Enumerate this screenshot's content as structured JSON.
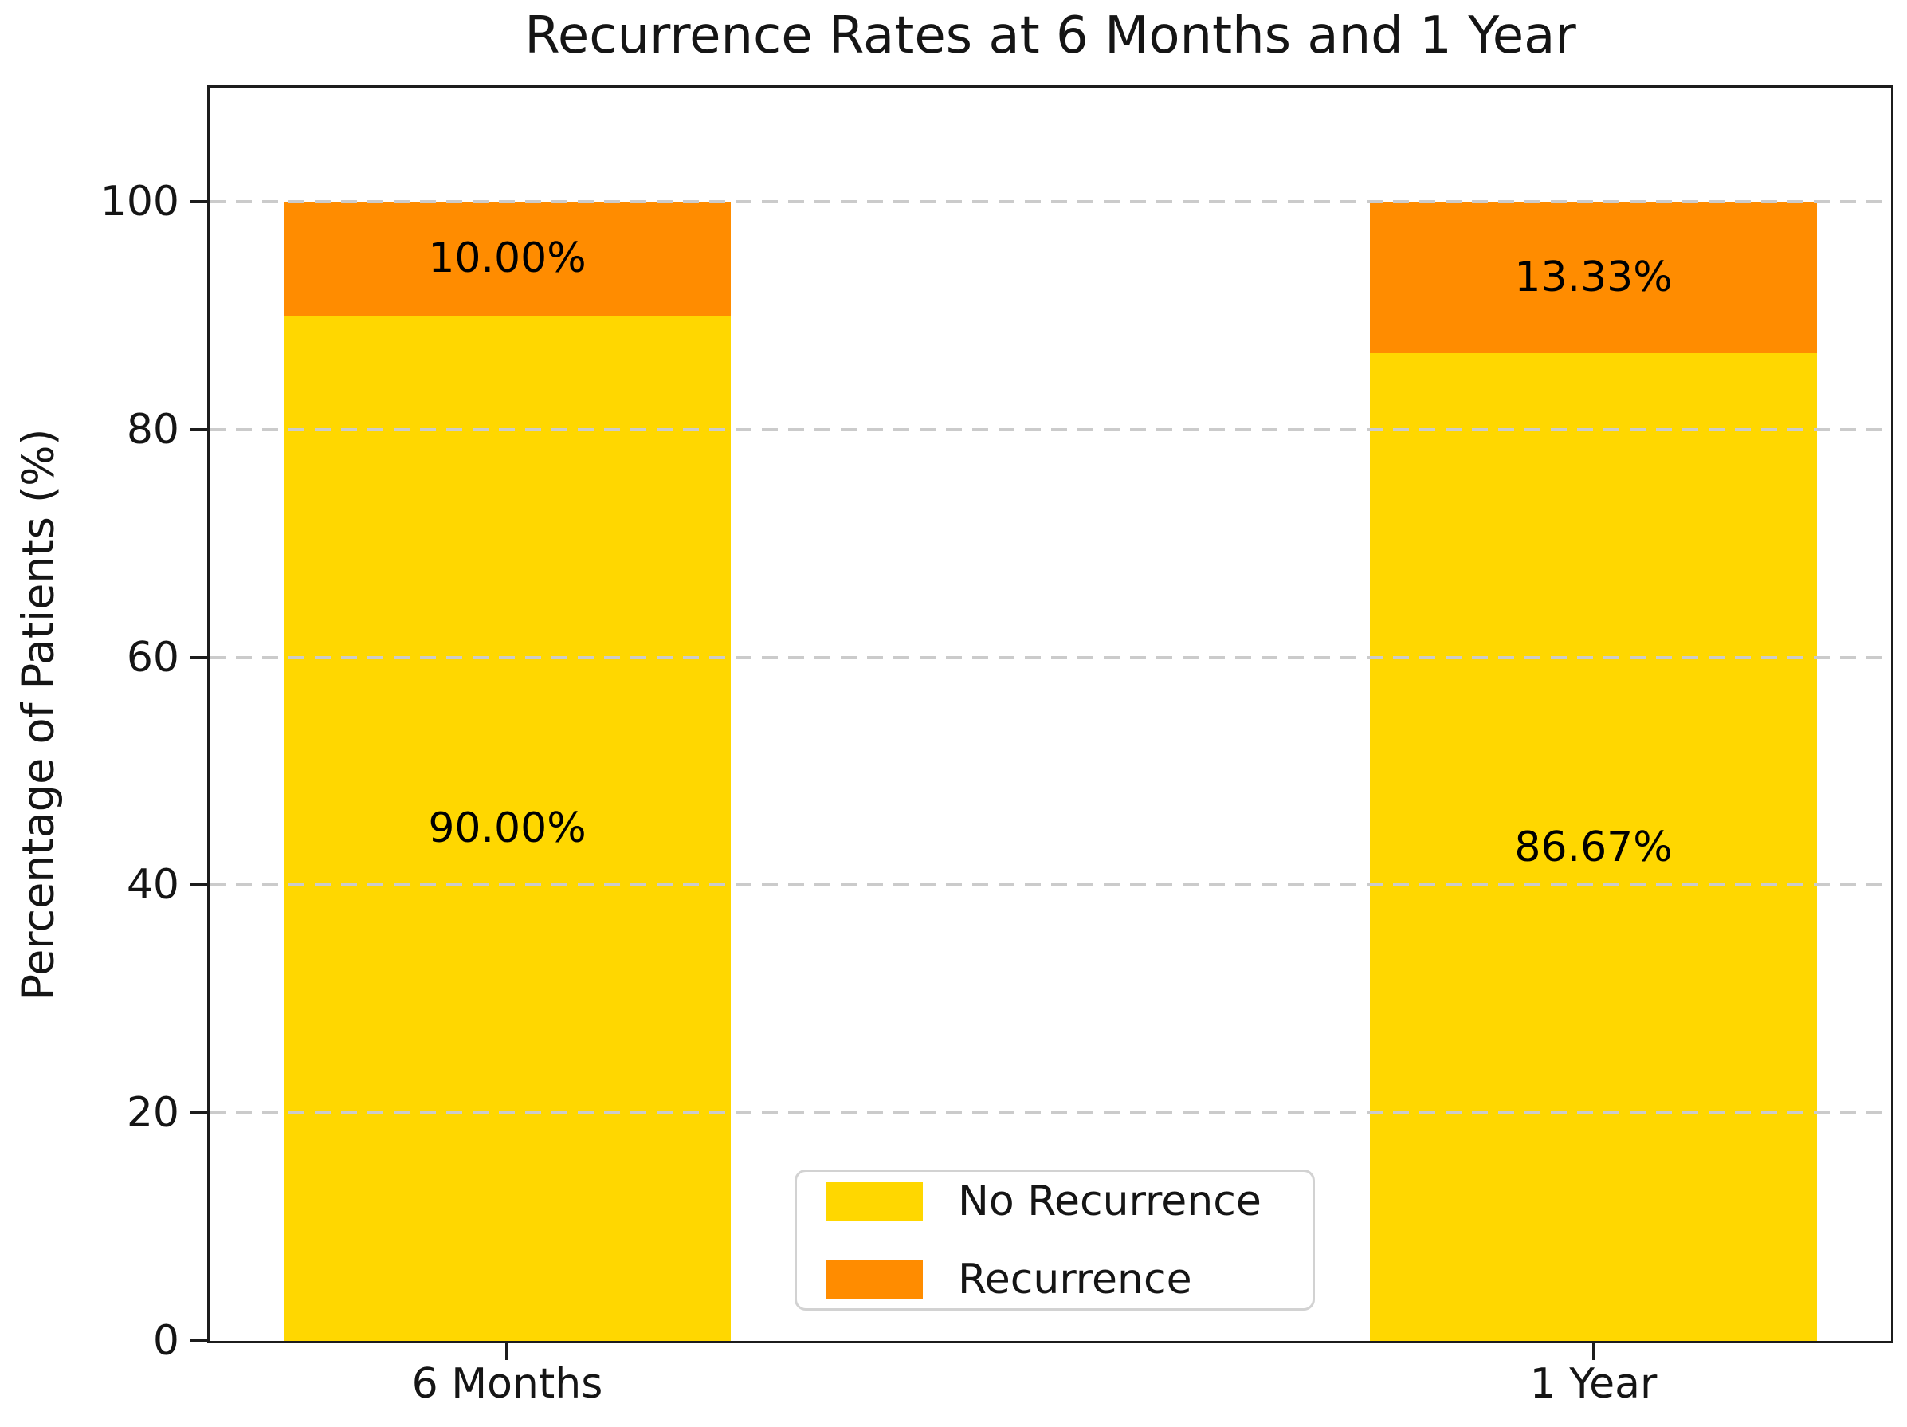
{
  "chart_data": {
    "type": "bar",
    "stacked": true,
    "title": "Recurrence Rates at 6 Months and 1 Year",
    "xlabel": "",
    "ylabel": "Percentage of Patients (%)",
    "categories": [
      "6 Months",
      "1 Year"
    ],
    "series": [
      {
        "name": "No Recurrence",
        "color": "#FFD700",
        "values": [
          90.0,
          86.67
        ],
        "value_labels": [
          "90.00%",
          "86.67%"
        ]
      },
      {
        "name": "Recurrence",
        "color": "#FF8C00",
        "values": [
          10.0,
          13.33
        ],
        "value_labels": [
          "10.00%",
          "13.33%"
        ]
      }
    ],
    "ylim": [
      0,
      110
    ],
    "yticks": [
      0,
      20,
      40,
      60,
      80,
      100
    ],
    "grid": {
      "visible": true,
      "axis": "y",
      "style": "dashed",
      "color": "#cbcbcb",
      "drawn_over_bars": true
    },
    "legend": {
      "position": "lower center",
      "entries": [
        "No Recurrence",
        "Recurrence"
      ]
    },
    "value_label_color": "#000000",
    "spine_color": "#1c1c1c",
    "background_color": "#ffffff"
  }
}
